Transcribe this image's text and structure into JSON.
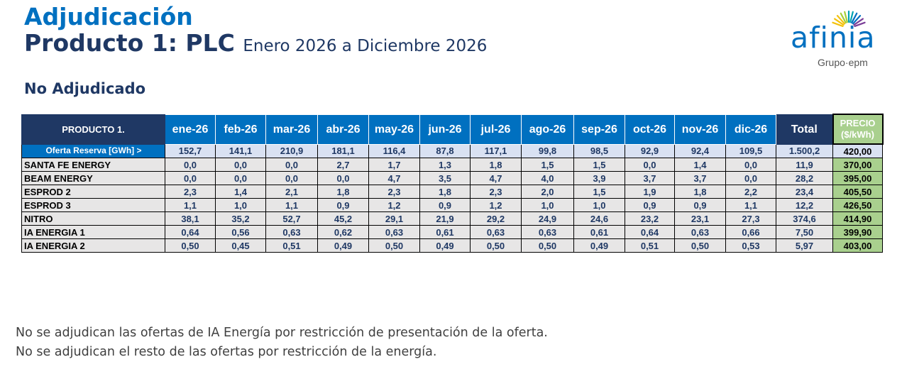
{
  "header": {
    "title": "Adjudicación",
    "product": "Producto 1: PLC",
    "period": "Enero 2026 a Diciembre 2026",
    "subtitle": "No Adjudicado"
  },
  "logo": {
    "name": "afinia",
    "group": "Grupo·epm",
    "ray_colors": [
      "#f4c20d",
      "#a6ce39",
      "#00a3b4",
      "#0070c0",
      "#7b3f98"
    ]
  },
  "table": {
    "product_label": "PRODUCTO 1.",
    "months": [
      "ene-26",
      "feb-26",
      "mar-26",
      "abr-26",
      "may-26",
      "jun-26",
      "jul-26",
      "ago-26",
      "sep-26",
      "oct-26",
      "nov-26",
      "dic-26"
    ],
    "total_label": "Total",
    "price_label_1": "PRECIO",
    "price_label_2": "($/kWh)",
    "rows": [
      {
        "name": "Oferta Reserva [GWh] >",
        "values": [
          "152,7",
          "141,1",
          "210,9",
          "181,1",
          "116,4",
          "87,8",
          "117,1",
          "99,8",
          "98,5",
          "92,9",
          "92,4",
          "109,5"
        ],
        "total": "1.500,2",
        "price": "420,00"
      },
      {
        "name": "SANTA FE ENERGY",
        "values": [
          "0,0",
          "0,0",
          "0,0",
          "2,7",
          "1,7",
          "1,3",
          "1,8",
          "1,5",
          "1,5",
          "0,0",
          "1,4",
          "0,0"
        ],
        "total": "11,9",
        "price": "370,00"
      },
      {
        "name": "BEAM ENERGY",
        "values": [
          "0,0",
          "0,0",
          "0,0",
          "0,0",
          "4,7",
          "3,5",
          "4,7",
          "4,0",
          "3,9",
          "3,7",
          "3,7",
          "0,0"
        ],
        "total": "28,2",
        "price": "395,00"
      },
      {
        "name": "ESPROD 2",
        "values": [
          "2,3",
          "1,4",
          "2,1",
          "1,8",
          "2,3",
          "1,8",
          "2,3",
          "2,0",
          "1,5",
          "1,9",
          "1,8",
          "2,2"
        ],
        "total": "23,4",
        "price": "405,50"
      },
      {
        "name": "ESPROD 3",
        "values": [
          "1,1",
          "1,0",
          "1,1",
          "0,9",
          "1,2",
          "0,9",
          "1,2",
          "1,0",
          "1,0",
          "0,9",
          "0,9",
          "1,1"
        ],
        "total": "12,2",
        "price": "426,50"
      },
      {
        "name": "NITRO",
        "values": [
          "38,1",
          "35,2",
          "52,7",
          "45,2",
          "29,1",
          "21,9",
          "29,2",
          "24,9",
          "24,6",
          "23,2",
          "23,1",
          "27,3"
        ],
        "total": "374,6",
        "price": "414,90"
      },
      {
        "name": "IA ENERGIA 1",
        "values": [
          "0,64",
          "0,56",
          "0,63",
          "0,62",
          "0,63",
          "0,61",
          "0,63",
          "0,63",
          "0,61",
          "0,64",
          "0,63",
          "0,66"
        ],
        "total": "7,50",
        "price": "399,90"
      },
      {
        "name": "IA ENERGIA 2",
        "values": [
          "0,50",
          "0,45",
          "0,51",
          "0,49",
          "0,50",
          "0,49",
          "0,50",
          "0,50",
          "0,49",
          "0,51",
          "0,50",
          "0,53"
        ],
        "total": "5,97",
        "price": "403,00"
      }
    ]
  },
  "notes": [
    "No se adjudican las ofertas de IA Energía por restricción de presentación de la oferta.",
    "No se adjudican el resto de las ofertas por restricción de la energía."
  ]
}
